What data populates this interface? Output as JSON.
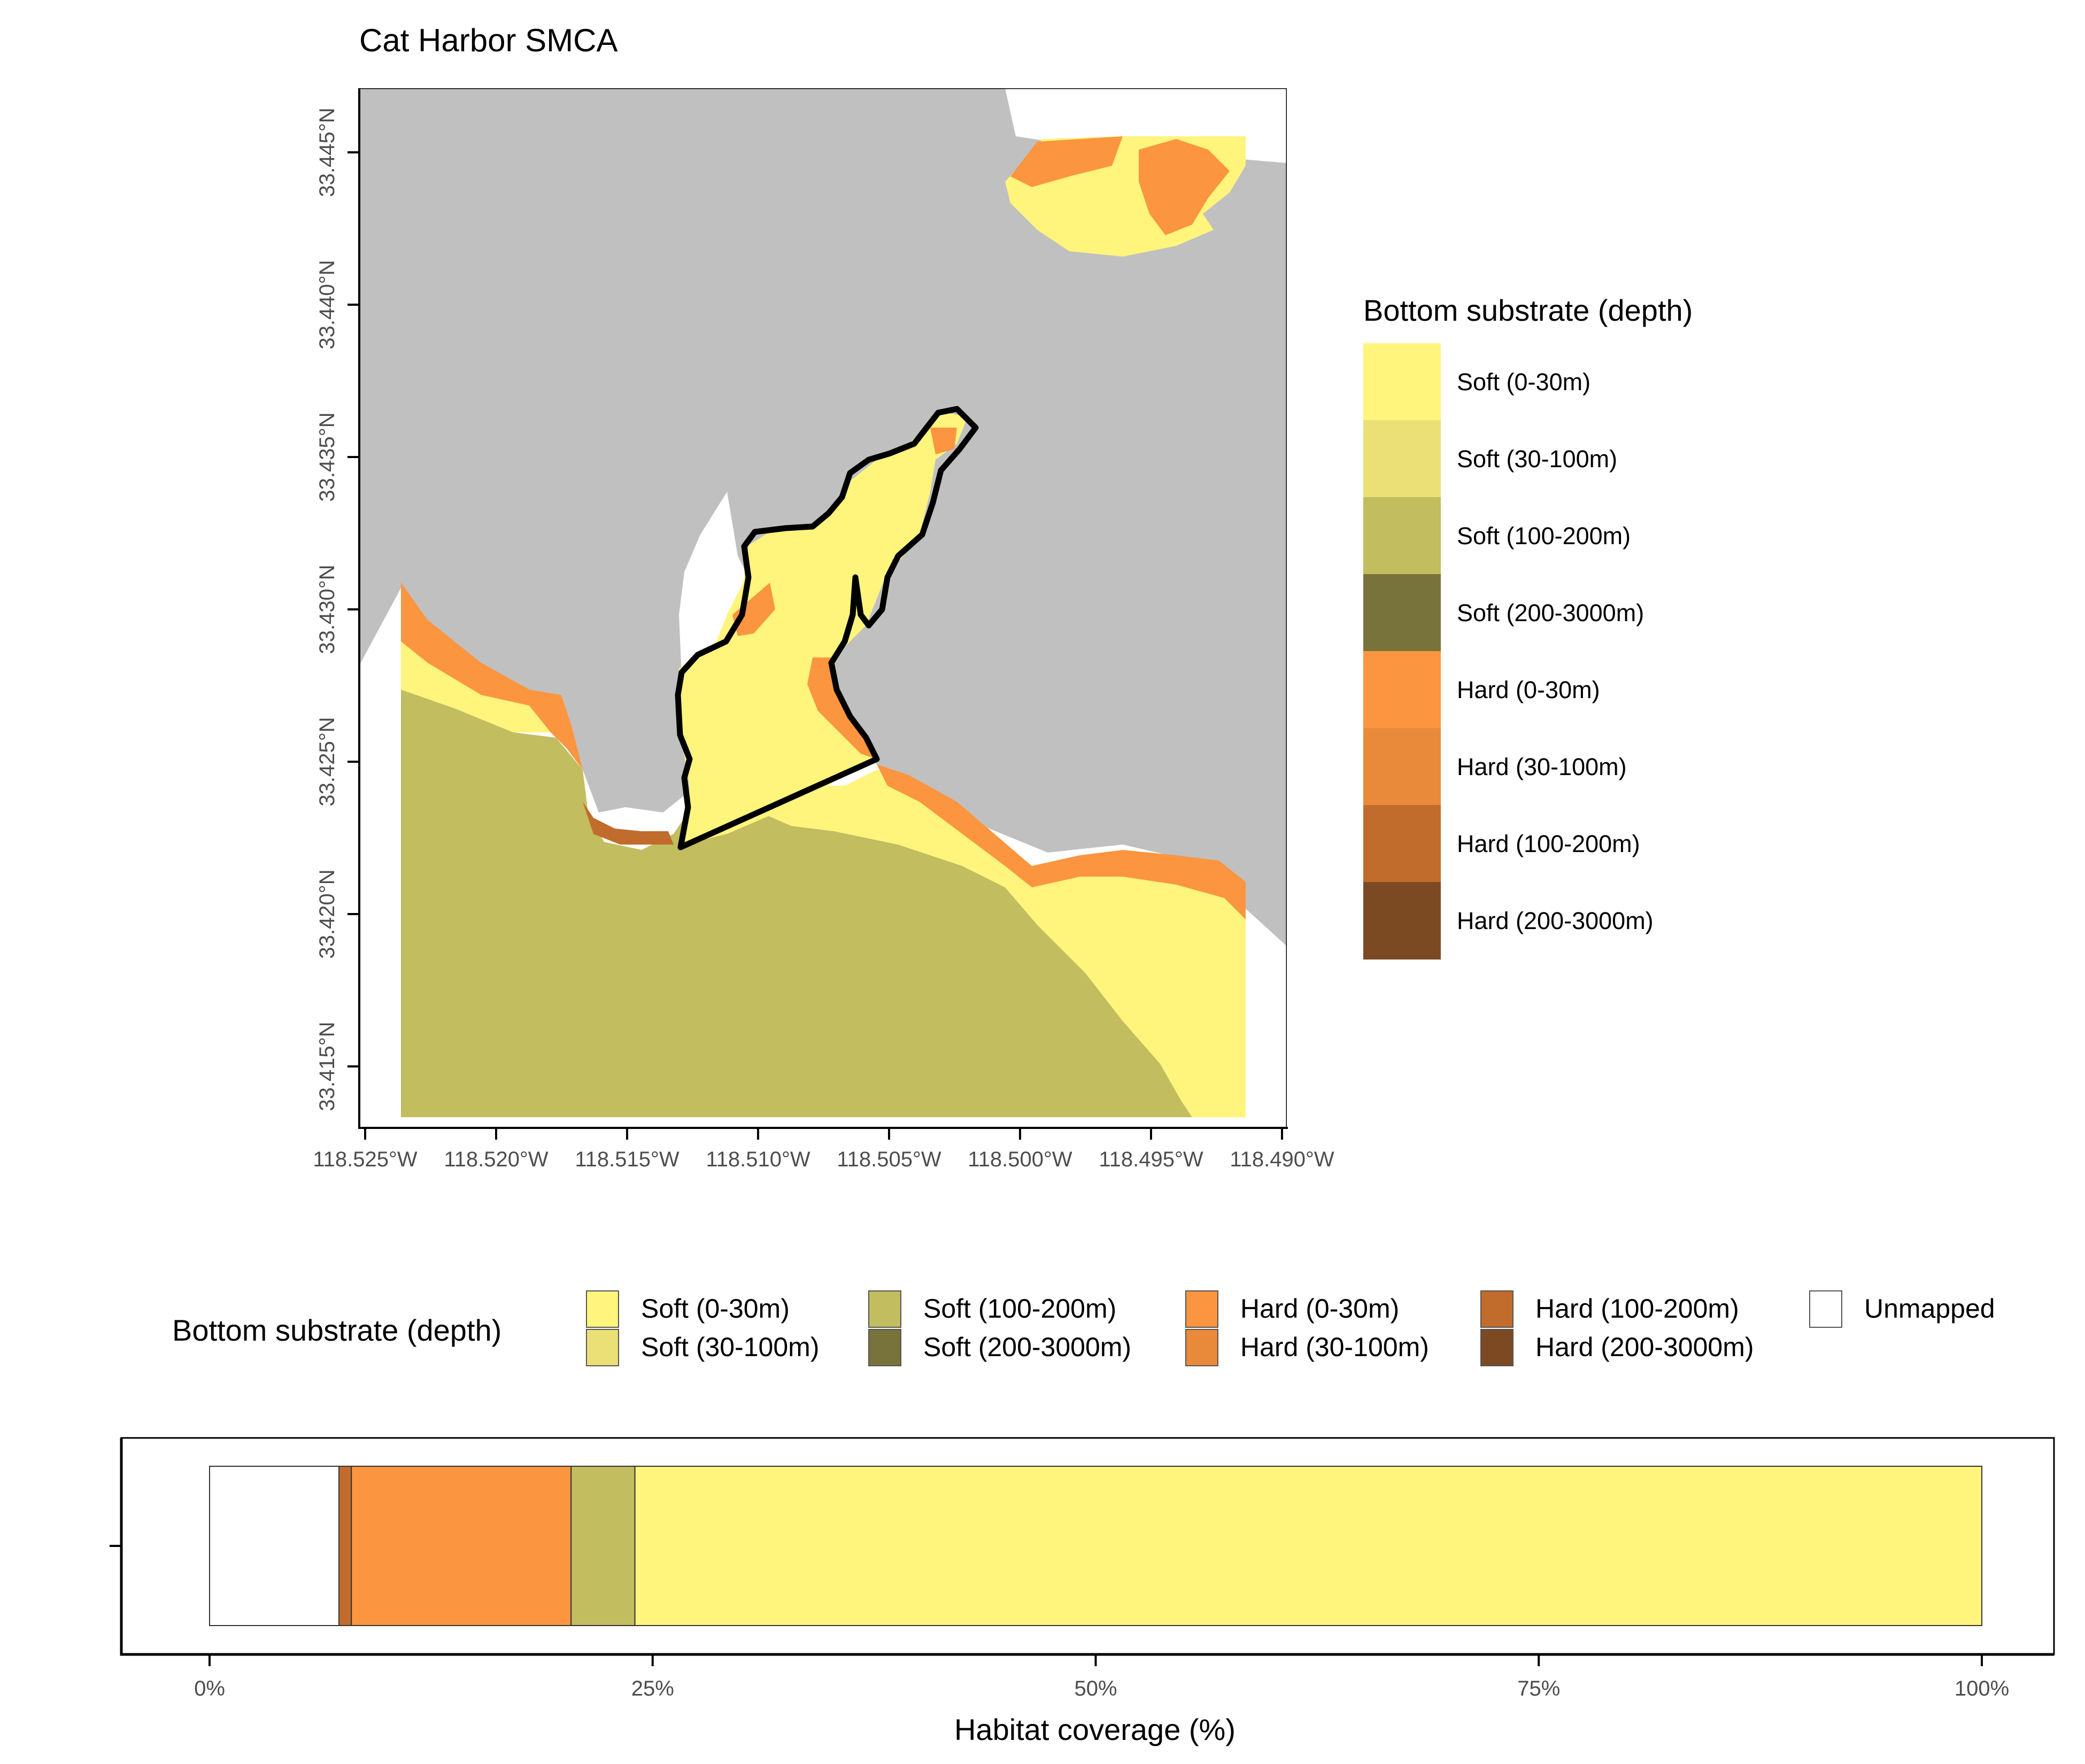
{
  "map": {
    "title": "Cat Harbor SMCA",
    "lat_ticks": [
      "33.445°N",
      "33.440°N",
      "33.435°N",
      "33.430°N",
      "33.425°N",
      "33.420°N",
      "33.415°N"
    ],
    "lon_ticks": [
      "118.525°W",
      "118.520°W",
      "118.515°W",
      "118.510°W",
      "118.505°W",
      "118.500°W",
      "118.495°W",
      "118.490°W"
    ],
    "colors": {
      "land": "#c0c0c0",
      "boundary": "#000000"
    }
  },
  "legend": {
    "title": "Bottom substrate (depth)",
    "items": [
      {
        "label": "Soft (0-30m)",
        "color": "#fff47c"
      },
      {
        "label": "Soft (30-100m)",
        "color": "#ebe076"
      },
      {
        "label": "Soft (100-200m)",
        "color": "#c2bd5f"
      },
      {
        "label": "Soft (200-3000m)",
        "color": "#77733b"
      },
      {
        "label": "Hard (0-30m)",
        "color": "#fb9540"
      },
      {
        "label": "Hard (30-100m)",
        "color": "#e98a3a"
      },
      {
        "label": "Hard (100-200m)",
        "color": "#c16c2c"
      },
      {
        "label": "Hard (200-3000m)",
        "color": "#7c4a22"
      }
    ]
  },
  "bottom_legend": {
    "title": "Bottom substrate (depth)",
    "items": [
      {
        "label": "Soft (0-30m)",
        "color": "#fff47c"
      },
      {
        "label": "Soft (30-100m)",
        "color": "#ebe076"
      },
      {
        "label": "Soft (100-200m)",
        "color": "#c2bd5f"
      },
      {
        "label": "Soft (200-3000m)",
        "color": "#77733b"
      },
      {
        "label": "Hard (0-30m)",
        "color": "#fb9540"
      },
      {
        "label": "Hard (30-100m)",
        "color": "#e98a3a"
      },
      {
        "label": "Hard (100-200m)",
        "color": "#c16c2c"
      },
      {
        "label": "Hard (200-3000m)",
        "color": "#7c4a22"
      },
      {
        "label": "Unmapped",
        "color": "#ffffff"
      }
    ]
  },
  "chart_data": {
    "type": "bar",
    "orientation": "horizontal",
    "stacked": true,
    "xlabel": "Habitat coverage (%)",
    "xlim": [
      0,
      100
    ],
    "xticks": [
      "0%",
      "25%",
      "50%",
      "75%",
      "100%"
    ],
    "series": [
      {
        "name": "Unmapped",
        "value": 7.3,
        "color": "#ffffff"
      },
      {
        "name": "Hard (100-200m)",
        "value": 0.7,
        "color": "#c16c2c"
      },
      {
        "name": "Hard (0-30m)",
        "value": 12.4,
        "color": "#fb9540"
      },
      {
        "name": "Soft (100-200m)",
        "value": 3.6,
        "color": "#c2bd5f"
      },
      {
        "name": "Soft (0-30m)",
        "value": 76.0,
        "color": "#fff47c"
      }
    ]
  }
}
